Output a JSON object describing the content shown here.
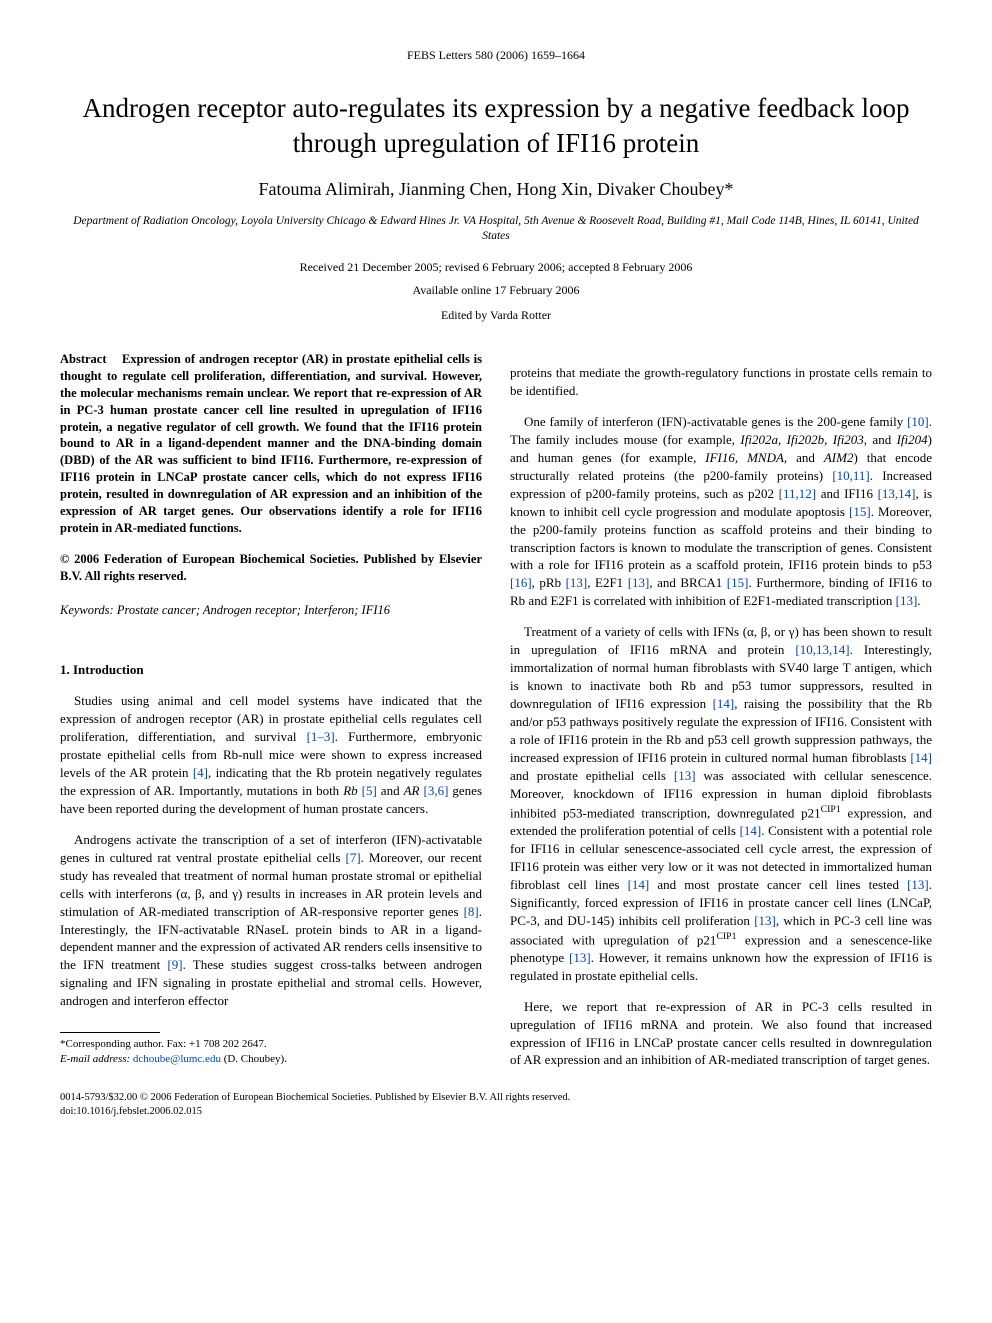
{
  "journal_header": "FEBS Letters 580 (2006) 1659–1664",
  "title": "Androgen receptor auto-regulates its expression by a negative feedback loop through upregulation of IFI16 protein",
  "authors": "Fatouma Alimirah, Jianming Chen, Hong Xin, Divaker Choubey*",
  "affiliation": "Department of Radiation Oncology, Loyola University Chicago & Edward Hines Jr. VA Hospital, 5th Avenue & Roosevelt Road, Building #1, Mail Code 114B, Hines, IL 60141, United States",
  "received": "Received 21 December 2005; revised 6 February 2006; accepted 8 February 2006",
  "online": "Available online 17 February 2006",
  "editor": "Edited by Varda Rotter",
  "abstract_label": "Abstract",
  "abstract_body": "Expression of androgen receptor (AR) in prostate epithelial cells is thought to regulate cell proliferation, differentiation, and survival. However, the molecular mechanisms remain unclear. We report that re-expression of AR in PC-3 human prostate cancer cell line resulted in upregulation of IFI16 protein, a negative regulator of cell growth. We found that the IFI16 protein bound to AR in a ligand-dependent manner and the DNA-binding domain (DBD) of the AR was sufficient to bind IFI16. Furthermore, re-expression of IFI16 protein in LNCaP prostate cancer cells, which do not express IFI16 protein, resulted in downregulation of AR expression and an inhibition of the expression of AR target genes. Our observations identify a role for IFI16 protein in AR-mediated functions.",
  "copyright": "© 2006 Federation of European Biochemical Societies. Published by Elsevier B.V. All rights reserved.",
  "keywords_label": "Keywords:",
  "keywords_body": "Prostate cancer; Androgen receptor; Interferon; IFI16",
  "section1": "1. Introduction",
  "left_p1_a": "Studies using animal and cell model systems have indicated that the expression of androgen receptor (AR) in prostate epithelial cells regulates cell proliferation, differentiation, and survival ",
  "ref_1_3": "[1–3]",
  "left_p1_b": ". Furthermore, embryonic prostate epithelial cells from Rb-null mice were shown to express increased levels of the AR protein ",
  "ref_4": "[4]",
  "left_p1_c": ", indicating that the Rb protein negatively regulates the expression of AR. Importantly, mutations in both ",
  "rb_it": "Rb",
  "ref_5": "[5]",
  "left_p1_d": " and ",
  "ar_it": "AR",
  "ref_3_6": "[3,6]",
  "left_p1_e": " genes have been reported during the development of human prostate cancers.",
  "left_p2_a": "Androgens activate the transcription of a set of interferon (IFN)-activatable genes in cultured rat ventral prostate epithelial cells ",
  "ref_7": "[7]",
  "left_p2_b": ". Moreover, our recent study has revealed that treatment of normal human prostate stromal or epithelial cells with interferons (α, β, and γ) results in increases in AR protein levels and stimulation of AR-mediated transcription of AR-responsive reporter genes ",
  "ref_8": "[8]",
  "left_p2_c": ". Interestingly, the IFN-activatable RNaseL protein binds to AR in a ligand-dependent manner and the expression of activated AR renders cells insensitive to the IFN treatment ",
  "ref_9": "[9]",
  "left_p2_d": ". These studies suggest cross-talks between androgen signaling and IFN signaling in prostate epithelial and stromal cells. However, androgen and interferon effector",
  "corr_label": "*Corresponding author. Fax: +1 708 202 2647.",
  "email_label": "E-mail address:",
  "email": "dchoube@lumc.edu",
  "email_tail": "(D. Choubey).",
  "right_p0": "proteins that mediate the growth-regulatory functions in prostate cells remain to be identified.",
  "right_p1_a": "One family of interferon (IFN)-activatable genes is the 200-gene family ",
  "ref_10": "[10]",
  "right_p1_b": ". The family includes mouse (for example, ",
  "genes_it": "Ifi202a, Ifi202b, Ifi203,",
  "and_txt": " and ",
  "ifi204_it": "Ifi204",
  "right_p1_c": ") and human genes (for example, ",
  "human_genes_it": "IFI16, MNDA,",
  "aim2_it": "AIM2",
  "right_p1_d": ") that encode structurally related proteins (the p200-family proteins) ",
  "ref_10_11": "[10,11]",
  "right_p1_e": ". Increased expression of p200-family proteins, such as p202 ",
  "ref_11_12": "[11,12]",
  "right_p1_f": " and IFI16 ",
  "ref_13_14": "[13,14]",
  "right_p1_g": ", is known to inhibit cell cycle progression and modulate apoptosis ",
  "ref_15": "[15]",
  "right_p1_h": ". Moreover, the p200-family proteins function as scaffold proteins and their binding to transcription factors is known to modulate the transcription of genes. Consistent with a role for IFI16 protein as a scaffold protein, IFI16 protein binds to p53 ",
  "ref_16": "[16]",
  "right_p1_i": ", pRb ",
  "ref_13a": "[13]",
  "right_p1_j": ", E2F1 ",
  "ref_13b": "[13]",
  "right_p1_k": ", and BRCA1 ",
  "ref_15b": "[15]",
  "right_p1_l": ". Furthermore, binding of IFI16 to Rb and E2F1 is correlated with inhibition of E2F1-mediated transcription ",
  "ref_13c": "[13]",
  "period": ".",
  "right_p2_a": "Treatment of a variety of cells with IFNs (α, β, or γ) has been shown to result in upregulation of IFI16 mRNA and protein ",
  "ref_10_13_14": "[10,13,14]",
  "right_p2_b": ". Interestingly, immortalization of normal human fibroblasts with SV40 large T antigen, which is known to inactivate both Rb and p53 tumor suppressors, resulted in downregulation of IFI16 expression ",
  "ref_14": "[14]",
  "right_p2_c": ", raising the possibility that the Rb and/or p53 pathways positively regulate the expression of IFI16. Consistent with a role of IFI16 protein in the Rb and p53 cell growth suppression pathways, the increased expression of IFI16 protein in cultured normal human fibroblasts ",
  "ref_14b": "[14]",
  "right_p2_d": " and prostate epithelial cells ",
  "ref_13d": "[13]",
  "right_p2_e": " was associated with cellular senescence. Moreover, knockdown of IFI16 expression in human diploid fibroblasts inhibited p53-mediated transcription, downregulated p21",
  "cip1": "CIP1",
  "right_p2_f": " expression, and extended the proliferation potential of cells ",
  "ref_14c": "[14]",
  "right_p2_g": ". Consistent with a potential role for IFI16 in cellular senescence-associated cell cycle arrest, the expression of IFI16 protein was either very low or it was not detected in immortalized human fibroblast cell lines ",
  "ref_14d": "[14]",
  "right_p2_h": " and most prostate cancer cell lines tested ",
  "ref_13e": "[13]",
  "right_p2_i": ". Significantly, forced expression of IFI16 in prostate cancer cell lines (LNCaP, PC-3, and DU-145) inhibits cell proliferation ",
  "ref_13f": "[13]",
  "right_p2_j": ", which in PC-3 cell line was associated with upregulation of p21",
  "right_p2_k": " expression and a senescence-like phenotype ",
  "ref_13g": "[13]",
  "right_p2_l": ". However, it remains unknown how the expression of IFI16 is regulated in prostate epithelial cells.",
  "right_p3": "Here, we report that re-expression of AR in PC-3 cells resulted in upregulation of IFI16 mRNA and protein. We also found that increased expression of IFI16 in LNCaP prostate cancer cells resulted in downregulation of AR expression and an inhibition of AR-mediated transcription of target genes.",
  "bottom1": "0014-5793/$32.00 © 2006 Federation of European Biochemical Societies. Published by Elsevier B.V. All rights reserved.",
  "bottom2": "doi:10.1016/j.febslet.2006.02.015",
  "colors": {
    "link": "#0645ad",
    "text": "#000000",
    "background": "#ffffff"
  }
}
